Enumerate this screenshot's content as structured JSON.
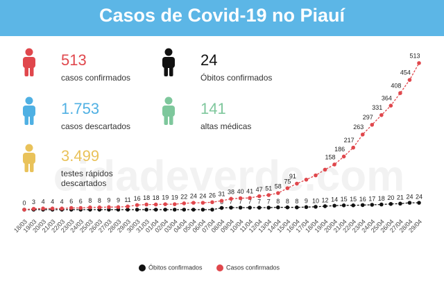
{
  "chart_data": {
    "type": "line",
    "title": "Casos de Covid-19 no Piauí",
    "watermark": "cidadeverde.com",
    "x": [
      "18/03",
      "19/03",
      "20/03",
      "21/03",
      "22/03",
      "23/03",
      "24/03",
      "25/03",
      "26/03",
      "27/03",
      "28/03",
      "29/03",
      "30/03",
      "31/03",
      "01/04",
      "02/04",
      "03/04",
      "04/04",
      "05/04",
      "06/04",
      "07/04",
      "08/04",
      "09/04",
      "10/04",
      "11/04",
      "12/04",
      "13/04",
      "14/04",
      "15/04",
      "16/04",
      "17/04",
      "18/04",
      "19/04",
      "20/04",
      "21/04",
      "22/04",
      "23/04",
      "24/04",
      "25/04",
      "26/04",
      "27/04",
      "28/04",
      "29/04"
    ],
    "ylim": [
      0,
      520
    ],
    "series": [
      {
        "name": "Óbitos confirmados",
        "color": "#111111",
        "values": [
          0,
          0,
          0,
          0,
          0,
          0,
          0,
          0,
          0,
          0,
          0,
          0,
          0,
          0,
          0,
          0,
          0,
          0,
          0,
          0,
          0,
          6,
          7,
          7,
          7,
          7,
          7,
          8,
          8,
          8,
          9,
          10,
          12,
          14,
          15,
          15,
          16,
          17,
          18,
          20,
          21,
          24,
          24
        ],
        "value_labels": [
          null,
          null,
          null,
          null,
          null,
          null,
          null,
          null,
          null,
          null,
          null,
          null,
          null,
          null,
          null,
          null,
          null,
          null,
          null,
          null,
          null,
          "6",
          "7",
          "7",
          "7",
          "7",
          "7",
          "8",
          "8",
          "8",
          "9",
          "10",
          "12",
          "14",
          "15",
          "15",
          "16",
          "17",
          "18",
          "20",
          "21",
          "24",
          "24"
        ]
      },
      {
        "name": "Casos confirmados",
        "color": "#e0474c",
        "values": [
          0,
          3,
          4,
          4,
          4,
          6,
          6,
          8,
          8,
          9,
          9,
          11,
          16,
          18,
          18,
          19,
          19,
          22,
          24,
          24,
          26,
          31,
          38,
          40,
          41,
          47,
          51,
          58,
          75,
          91,
          105,
          120,
          140,
          158,
          186,
          217,
          263,
          297,
          331,
          364,
          408,
          454,
          513
        ],
        "value_labels": [
          "0",
          "3",
          "4",
          "4",
          "4",
          "6",
          "6",
          "8",
          "8",
          "9",
          "9",
          "11",
          "16",
          "18",
          "18",
          "19",
          "19",
          "22",
          "24",
          "24",
          "26",
          "31",
          "38",
          "40",
          "41",
          "47",
          "51",
          "58",
          "75",
          "91",
          null,
          null,
          null,
          "158",
          "186",
          "217",
          "263",
          "297",
          "331",
          "364",
          "408",
          "454",
          "513"
        ]
      }
    ],
    "stats": [
      {
        "value": "513",
        "label": "casos confirmados",
        "color": "#e0474c"
      },
      {
        "value": "24",
        "label": "Óbitos confirmados",
        "color": "#111111"
      },
      {
        "value": "1.753",
        "label": "casos descartados",
        "color": "#4fb0e3"
      },
      {
        "value": "141",
        "label": "altas médicas",
        "color": "#7ec79c"
      },
      {
        "value": "3.499",
        "label": "testes rápidos descartados",
        "color": "#e9c25a"
      }
    ]
  }
}
